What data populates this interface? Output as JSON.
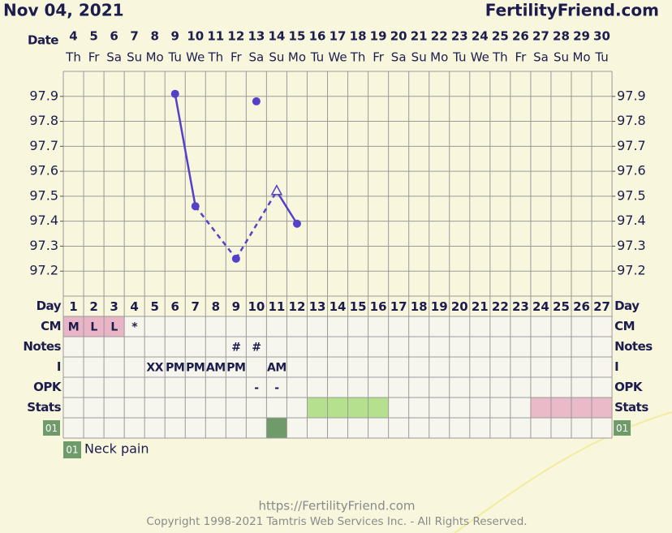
{
  "header": {
    "date": "Nov 04, 2021",
    "site": "FertilityFriend.com"
  },
  "chart_data": {
    "type": "line",
    "date_label": "Date",
    "categories": [
      "4",
      "5",
      "6",
      "7",
      "8",
      "9",
      "10",
      "11",
      "12",
      "13",
      "14",
      "15",
      "16",
      "17",
      "18",
      "19",
      "20",
      "21",
      "22",
      "23",
      "24",
      "25",
      "26",
      "27",
      "28",
      "29",
      "30"
    ],
    "weekdays": [
      "Th",
      "Fr",
      "Sa",
      "Su",
      "Mo",
      "Tu",
      "We",
      "Th",
      "Fr",
      "Sa",
      "Su",
      "Mo",
      "Tu",
      "We",
      "Th",
      "Fr",
      "Sa",
      "Su",
      "Mo",
      "Tu",
      "We",
      "Th",
      "Fr",
      "Sa",
      "Su",
      "Mo",
      "Tu"
    ],
    "series": [
      {
        "color": "#5540c8",
        "values": [
          null,
          null,
          null,
          null,
          null,
          97.91,
          97.46,
          null,
          97.25,
          null,
          97.52,
          97.39,
          null,
          null,
          null,
          null,
          null,
          null,
          null,
          null,
          null,
          null,
          null,
          null,
          null,
          null,
          null
        ],
        "markers": [
          null,
          null,
          null,
          null,
          null,
          "dot",
          "dot",
          null,
          "dot",
          null,
          "triangle",
          "dot",
          null,
          null,
          null,
          null,
          null,
          null,
          null,
          null,
          null,
          null,
          null,
          null,
          null,
          null,
          null
        ]
      },
      {
        "color": "#5540c8",
        "values": [
          null,
          null,
          null,
          null,
          null,
          null,
          null,
          null,
          null,
          97.88,
          null,
          null,
          null,
          null,
          null,
          null,
          null,
          null,
          null,
          null,
          null,
          null,
          null,
          null,
          null,
          null,
          null
        ]
      }
    ],
    "ylim": [
      97.1,
      98.0
    ],
    "yticks": [
      97.2,
      97.3,
      97.4,
      97.5,
      97.6,
      97.7,
      97.8,
      97.9
    ],
    "grid": true
  },
  "table": {
    "rows": [
      {
        "label": "Day",
        "cells": [
          1,
          2,
          3,
          4,
          5,
          6,
          7,
          8,
          9,
          10,
          11,
          12,
          13,
          14,
          15,
          16,
          17,
          18,
          19,
          20,
          21,
          22,
          23,
          24,
          25,
          26,
          27
        ]
      },
      {
        "label": "CM",
        "cells": [
          "M",
          "L",
          "L",
          "*",
          null,
          null,
          null,
          null,
          null,
          null,
          null,
          null,
          null,
          null,
          null,
          null,
          null,
          null,
          null,
          null,
          null,
          null,
          null,
          null,
          null,
          null,
          null
        ],
        "colors": [
          "#e8b4c6",
          "#e8b4c6",
          "#e8b4c6",
          null,
          null,
          null,
          null,
          null,
          null,
          null,
          null,
          null,
          null,
          null,
          null,
          null,
          null,
          null,
          null,
          null,
          null,
          null,
          null,
          null,
          null,
          null,
          null
        ]
      },
      {
        "label": "Notes",
        "cells": [
          null,
          null,
          null,
          null,
          null,
          null,
          null,
          null,
          "#",
          "#",
          null,
          null,
          null,
          null,
          null,
          null,
          null,
          null,
          null,
          null,
          null,
          null,
          null,
          null,
          null,
          null,
          null
        ]
      },
      {
        "label": "I",
        "cells": [
          null,
          null,
          null,
          null,
          "XX",
          "PM",
          "PM",
          "AM",
          "PM",
          null,
          "AM",
          null,
          null,
          null,
          null,
          null,
          null,
          null,
          null,
          null,
          null,
          null,
          null,
          null,
          null,
          null,
          null
        ]
      },
      {
        "label": "OPK",
        "cells": [
          null,
          null,
          null,
          null,
          null,
          null,
          null,
          null,
          null,
          "-",
          "-",
          null,
          null,
          null,
          null,
          null,
          null,
          null,
          null,
          null,
          null,
          null,
          null,
          null,
          null,
          null,
          null
        ]
      },
      {
        "label": "Stats",
        "colors": [
          null,
          null,
          null,
          null,
          null,
          null,
          null,
          null,
          null,
          null,
          null,
          null,
          "#b5e08e",
          "#b5e08e",
          "#b5e08e",
          "#b5e08e",
          null,
          null,
          null,
          null,
          null,
          null,
          null,
          "#ebbac8",
          "#ebbac8",
          "#ebbac8",
          "#ebbac8"
        ]
      },
      {
        "label": "01",
        "label_color": "#6f9a6a",
        "colors": [
          null,
          null,
          null,
          null,
          null,
          null,
          null,
          null,
          null,
          null,
          "#6f9a6a",
          null,
          null,
          null,
          null,
          null,
          null,
          null,
          null,
          null,
          null,
          null,
          null,
          null,
          null,
          null,
          null
        ]
      }
    ]
  },
  "legend": {
    "code": "01",
    "label": "Neck pain",
    "color": "#6f9a6a"
  },
  "footer": {
    "url": "https://FertilityFriend.com",
    "copyright": "Copyright 1998-2021 Tamtris Web Services Inc. - All Rights Reserved."
  }
}
